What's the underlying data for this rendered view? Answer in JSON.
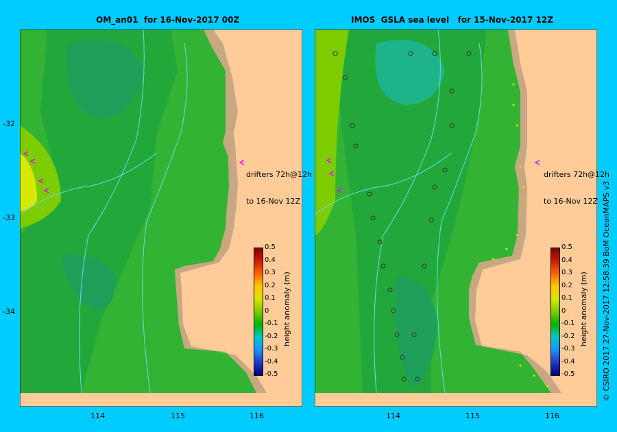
{
  "panels": [
    {
      "title": "OM_an01  for 16-Nov-2017 00Z",
      "annotation_line1": "drifters 72h@12h",
      "annotation_line2": "to 16-Nov 12Z"
    },
    {
      "title": "IMOS  GSLA sea level   for 15-Nov-2017 12Z",
      "annotation_line1": "drifters 72h@12h",
      "annotation_line2": "to 16-Nov 12Z"
    }
  ],
  "y_ticks": [
    "-32",
    "-33",
    "-34"
  ],
  "x_ticks": [
    "114",
    "115",
    "116"
  ],
  "colorbar": {
    "label": "height anomaly (m)",
    "ticks": [
      "0.5",
      "0.4",
      "0.3",
      "0.2",
      "0.1",
      "0",
      "-0.1",
      "-0.2",
      "-0.3",
      "-0.4",
      "-0.5"
    ],
    "colors": [
      "#000080",
      "#1e3cc8",
      "#1e90ff",
      "#00c8c8",
      "#00b400",
      "#7ccc00",
      "#d8e800",
      "#ffc800",
      "#ff6400",
      "#c81e00",
      "#800000"
    ]
  },
  "copyright": "© CSIRO 2017   27-Nov-2017 12:58:39 BoM OceanMAPS v3",
  "colors": {
    "background": "#00ccff",
    "land": "#ffcc99",
    "shelf": "#c8a882",
    "drifter": "#ff00ff",
    "contour": "#66ddee"
  }
}
